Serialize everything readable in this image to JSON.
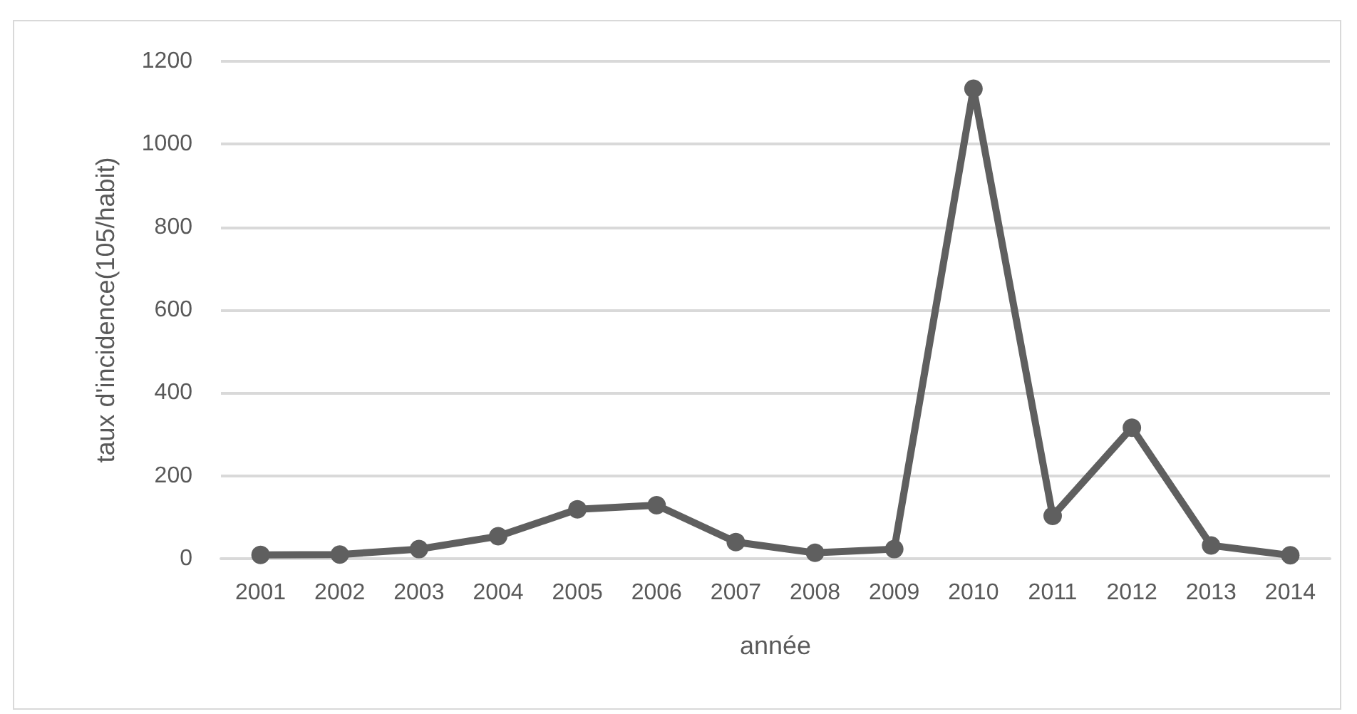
{
  "chart_data": {
    "type": "line",
    "xlabel": "année",
    "ylabel": "taux d'incidence(105/habit)",
    "categories": [
      "2001",
      "2002",
      "2003",
      "2004",
      "2005",
      "2006",
      "2007",
      "2008",
      "2009",
      "2010",
      "2011",
      "2012",
      "2013",
      "2014"
    ],
    "series": [
      {
        "color": "#5f5f5f",
        "values": [
          9,
          10,
          23,
          54,
          119,
          129,
          40,
          14,
          23,
          1134,
          103,
          316,
          32,
          8
        ]
      }
    ],
    "ylim": [
      0,
      1200
    ],
    "yticks": [
      0,
      200,
      400,
      600,
      800,
      1000,
      1200
    ],
    "grid": "y",
    "marker": "circle",
    "line_style": "solid"
  }
}
